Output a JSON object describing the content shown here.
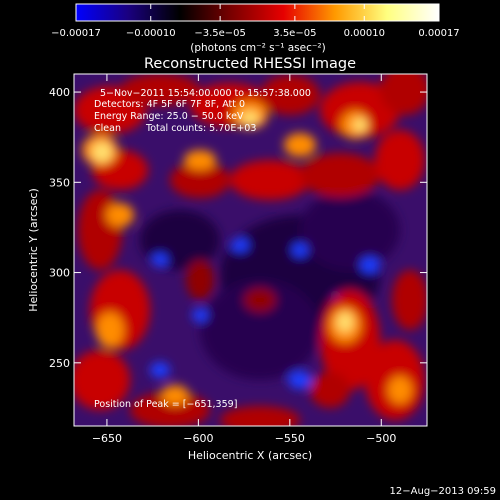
{
  "colorbar": {
    "ticks": [
      {
        "label": "−0.00017",
        "value": -0.00017
      },
      {
        "label": "−0.00010",
        "value": -0.0001
      },
      {
        "label": "−3.5e−05",
        "value": -3.5e-05
      },
      {
        "label": "3.5e−05",
        "value": 3.5e-05
      },
      {
        "label": "0.00010",
        "value": 0.0001
      },
      {
        "label": "0.00017",
        "value": 0.00017
      }
    ],
    "unit_label": "(photons cm⁻² s⁻¹ asec⁻²)",
    "colors": [
      "#0000ff",
      "#1a0080",
      "#000000",
      "#7a0000",
      "#e60000",
      "#ff9a00",
      "#ffff80",
      "#ffffff"
    ]
  },
  "chart_data": {
    "type": "heatmap",
    "title": "Reconstructed RHESSI Image",
    "xlabel": "Heliocentric X (arcsec)",
    "ylabel": "Heliocentric Y (arcsec)",
    "xlim": [
      -668,
      -475
    ],
    "ylim": [
      215,
      410
    ],
    "xticks": [
      -650,
      -600,
      -550,
      -500
    ],
    "yticks": [
      250,
      300,
      350,
      400
    ],
    "annotations": {
      "time_range": "5−Nov−2011 15:54:00.000 to 15:57:38.000",
      "detectors": "Detectors: 4F 5F 6F 7F 8F, Att 0",
      "energy": "Energy Range: 25.0 − 50.0 keV",
      "method": "Clean",
      "counts": "Total counts: 5.70E+03",
      "peak": "Position of Peak = [−651,359]"
    },
    "peak": {
      "x": -651,
      "y": 359
    }
  },
  "footer": {
    "timestamp": "12−Aug−2013 09:59"
  }
}
